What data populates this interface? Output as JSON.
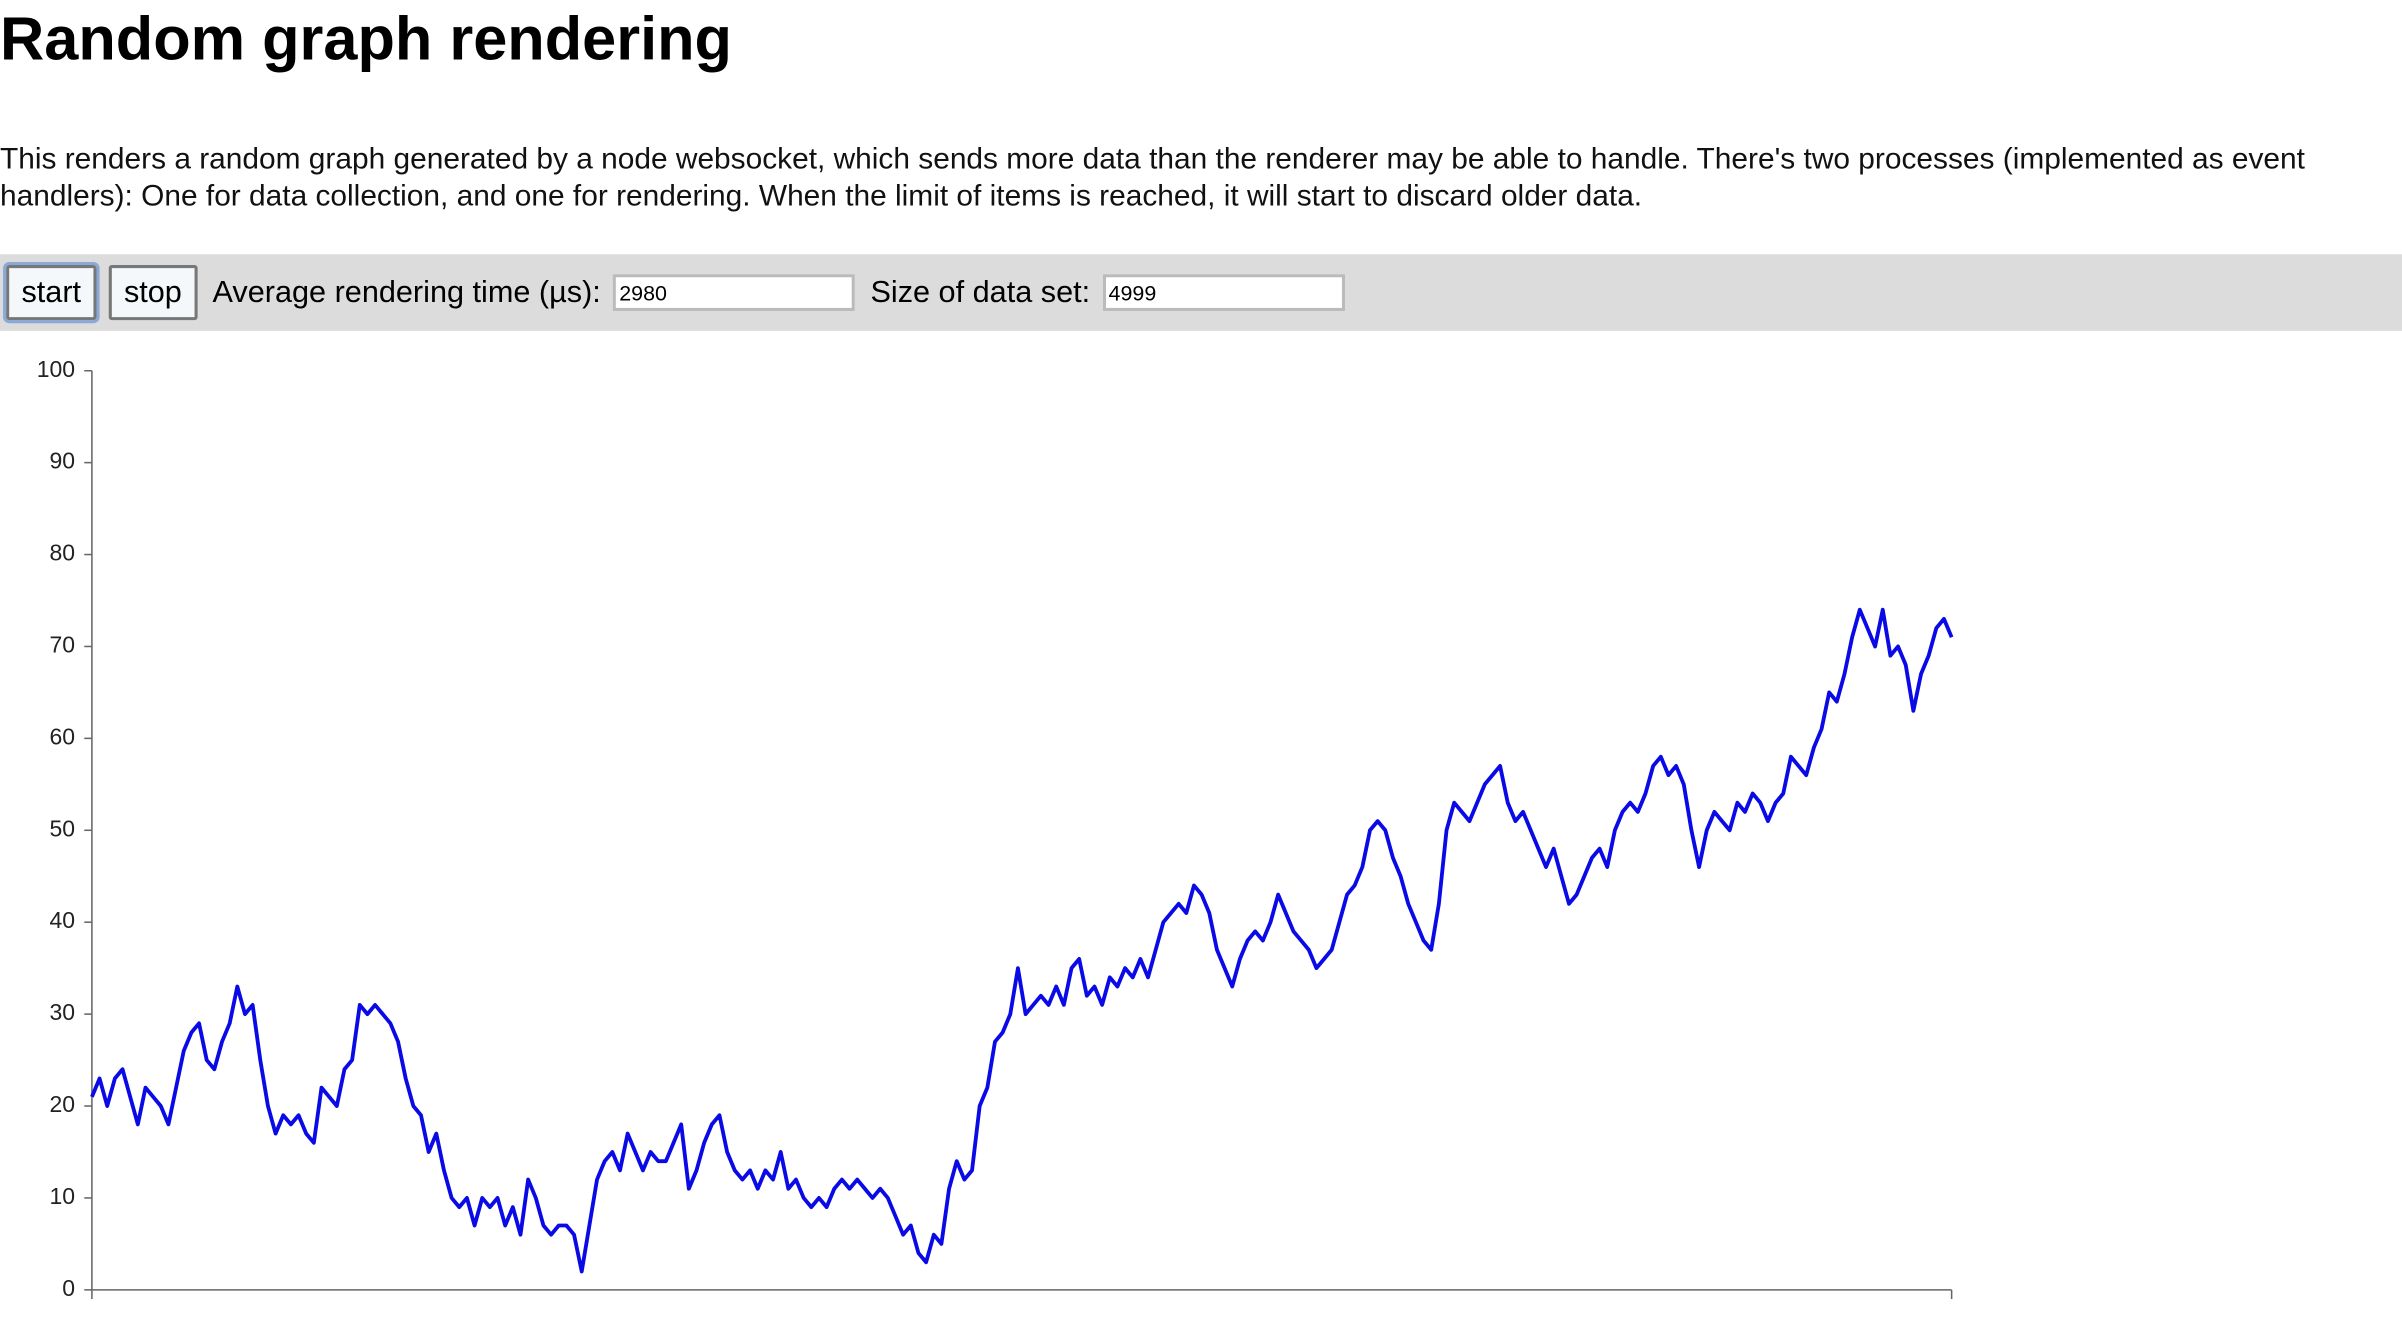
{
  "header": {
    "title": "Random graph rendering"
  },
  "description": "This renders a random graph generated by a node websocket, which sends more data than the renderer may be able to handle. There's two processes (implemented as event handlers): One for data collection, and one for rendering. When the limit of items is reached, it will start to discard older data.",
  "controls": {
    "start": "start",
    "stop": "stop",
    "avg_label": "Average rendering time (µs):",
    "avg_value": "2980",
    "size_label": "Size of data set:",
    "size_value": "4999"
  },
  "chart_data": {
    "type": "line",
    "color": "#0a0ae6",
    "ylim": [
      0,
      100
    ],
    "yticks": [
      0,
      10,
      20,
      30,
      40,
      50,
      60,
      70,
      80,
      90,
      100
    ],
    "values": [
      21,
      23,
      20,
      23,
      24,
      21,
      18,
      22,
      21,
      20,
      18,
      22,
      26,
      28,
      29,
      25,
      24,
      27,
      29,
      33,
      30,
      31,
      25,
      20,
      17,
      19,
      18,
      19,
      17,
      16,
      22,
      21,
      20,
      24,
      25,
      31,
      30,
      31,
      30,
      29,
      27,
      23,
      20,
      19,
      15,
      17,
      13,
      10,
      9,
      10,
      7,
      10,
      9,
      10,
      7,
      9,
      6,
      12,
      10,
      7,
      6,
      7,
      7,
      6,
      2,
      7,
      12,
      14,
      15,
      13,
      17,
      15,
      13,
      15,
      14,
      14,
      16,
      18,
      11,
      13,
      16,
      18,
      19,
      15,
      13,
      12,
      13,
      11,
      13,
      12,
      15,
      11,
      12,
      10,
      9,
      10,
      9,
      11,
      12,
      11,
      12,
      11,
      10,
      11,
      10,
      8,
      6,
      7,
      4,
      3,
      6,
      5,
      11,
      14,
      12,
      13,
      20,
      22,
      27,
      28,
      30,
      35,
      30,
      31,
      32,
      31,
      33,
      31,
      35,
      36,
      32,
      33,
      31,
      34,
      33,
      35,
      34,
      36,
      34,
      37,
      40,
      41,
      42,
      41,
      44,
      43,
      41,
      37,
      35,
      33,
      36,
      38,
      39,
      38,
      40,
      43,
      41,
      39,
      38,
      37,
      35,
      36,
      37,
      40,
      43,
      44,
      46,
      50,
      51,
      50,
      47,
      45,
      42,
      40,
      38,
      37,
      42,
      50,
      53,
      52,
      51,
      53,
      55,
      56,
      57,
      53,
      51,
      52,
      50,
      48,
      46,
      48,
      45,
      42,
      43,
      45,
      47,
      48,
      46,
      50,
      52,
      53,
      52,
      54,
      57,
      58,
      56,
      57,
      55,
      50,
      46,
      50,
      52,
      51,
      50,
      53,
      52,
      54,
      53,
      51,
      53,
      54,
      58,
      57,
      56,
      59,
      61,
      65,
      64,
      67,
      71,
      74,
      72,
      70,
      74,
      69,
      70,
      68,
      63,
      67,
      69,
      72,
      73,
      71
    ]
  }
}
